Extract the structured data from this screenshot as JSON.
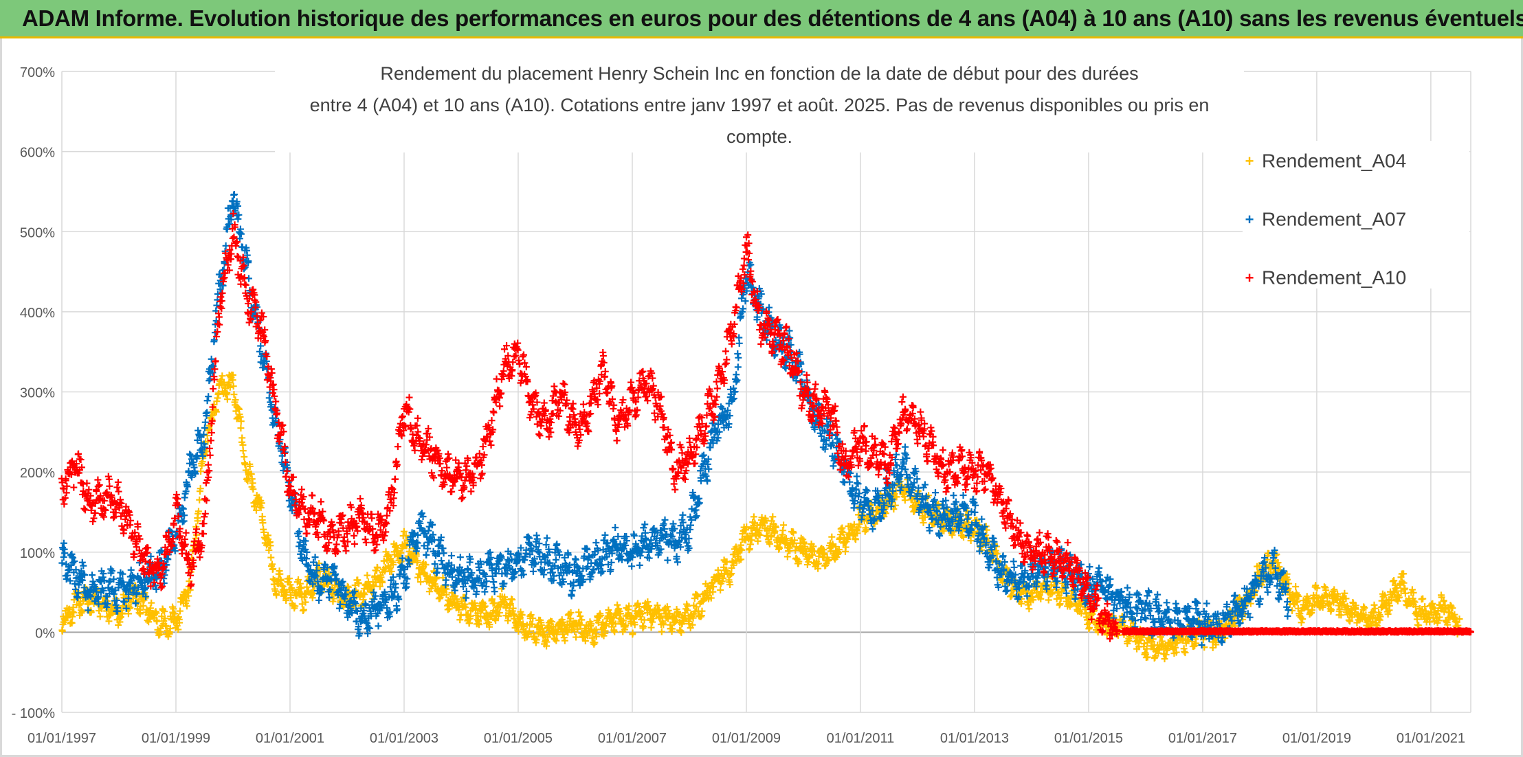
{
  "header": {
    "title": "ADAM Informe. Evolution historique des performances en euros pour des détentions de 4 ans (A04) à 10 ans (A10) sans les revenus éventuels"
  },
  "chart_data": {
    "type": "scatter",
    "title_line1": "Rendement du placement Henry Schein Inc en fonction de la date de début pour des durées",
    "title_line2": "entre 4 (A04) et 10 ans (A10). Cotations entre janv 1997 et août. 2025. Pas de revenus disponibles ou pris en compte.",
    "xlabel": "",
    "ylabel": "",
    "x_range": [
      "01/01/1997",
      "01/09/2021"
    ],
    "ylim": [
      -100,
      700
    ],
    "y_ticks": [
      -100,
      0,
      100,
      200,
      300,
      400,
      500,
      600,
      700
    ],
    "y_tick_labels": [
      "- 100%",
      "0%",
      "100%",
      "200%",
      "300%",
      "400%",
      "500%",
      "600%",
      "700%"
    ],
    "x_tick_labels": [
      "01/01/1997",
      "01/01/1999",
      "01/01/2001",
      "01/01/2003",
      "01/01/2005",
      "01/01/2007",
      "01/01/2009",
      "01/01/2011",
      "01/01/2013",
      "01/01/2015",
      "01/01/2017",
      "01/01/2019",
      "01/01/2021"
    ],
    "grid": true,
    "legend_position": "right",
    "marker": "+",
    "series": [
      {
        "name": "Rendement_A04",
        "color": "#ffc000",
        "x": [
          1997.0,
          1997.25,
          1997.5,
          1997.75,
          1998.0,
          1998.25,
          1998.5,
          1998.75,
          1999.0,
          1999.25,
          1999.5,
          1999.75,
          2000.0,
          2000.25,
          2000.5,
          2000.75,
          2001.0,
          2001.25,
          2001.5,
          2001.75,
          2002.0,
          2002.25,
          2002.5,
          2002.75,
          2003.0,
          2003.25,
          2003.5,
          2003.75,
          2004.0,
          2004.25,
          2004.5,
          2004.75,
          2005.0,
          2005.25,
          2005.5,
          2005.75,
          2006.0,
          2006.25,
          2006.5,
          2006.75,
          2007.0,
          2007.25,
          2007.5,
          2007.75,
          2008.0,
          2008.25,
          2008.5,
          2008.75,
          2009.0,
          2009.25,
          2009.5,
          2009.75,
          2010.0,
          2010.25,
          2010.5,
          2010.75,
          2011.0,
          2011.25,
          2011.5,
          2011.75,
          2012.0,
          2012.25,
          2012.5,
          2012.75,
          2013.0,
          2013.25,
          2013.5,
          2013.75,
          2014.0,
          2014.25,
          2014.5,
          2014.75,
          2015.0,
          2015.25,
          2015.5,
          2015.75,
          2016.0,
          2016.25,
          2016.5,
          2016.75,
          2017.0,
          2017.25,
          2017.5,
          2017.75,
          2018.0,
          2018.25,
          2018.5,
          2018.75,
          2019.0,
          2019.25,
          2019.5,
          2019.75,
          2020.0,
          2020.25,
          2020.5,
          2020.75,
          2021.0,
          2021.25,
          2021.5
        ],
        "y": [
          10,
          35,
          40,
          30,
          25,
          45,
          30,
          10,
          15,
          60,
          230,
          300,
          310,
          200,
          150,
          60,
          50,
          45,
          70,
          55,
          40,
          50,
          60,
          90,
          110,
          80,
          65,
          45,
          30,
          25,
          20,
          40,
          10,
          5,
          0,
          5,
          10,
          0,
          10,
          20,
          15,
          25,
          20,
          15,
          20,
          40,
          70,
          80,
          120,
          130,
          125,
          110,
          100,
          90,
          100,
          120,
          140,
          150,
          165,
          185,
          160,
          150,
          140,
          135,
          130,
          110,
          75,
          50,
          45,
          60,
          50,
          40,
          20,
          10,
          5,
          0,
          -15,
          -20,
          -10,
          -5,
          0,
          -5,
          15,
          35,
          70,
          90,
          50,
          30,
          40,
          45,
          30,
          20,
          15,
          40,
          60,
          25,
          20,
          30,
          10
        ],
        "spread": 15
      },
      {
        "name": "Rendement_A07",
        "color": "#0070c0",
        "x": [
          1997.0,
          1997.25,
          1997.5,
          1997.75,
          1998.0,
          1998.25,
          1998.5,
          1998.75,
          1999.0,
          1999.25,
          1999.5,
          1999.75,
          2000.0,
          2000.25,
          2000.5,
          2000.75,
          2001.0,
          2001.25,
          2001.5,
          2001.75,
          2002.0,
          2002.25,
          2002.5,
          2002.75,
          2003.0,
          2003.25,
          2003.5,
          2003.75,
          2004.0,
          2004.25,
          2004.5,
          2004.75,
          2005.0,
          2005.25,
          2005.5,
          2005.75,
          2006.0,
          2006.25,
          2006.5,
          2006.75,
          2007.0,
          2007.25,
          2007.5,
          2007.75,
          2008.0,
          2008.25,
          2008.5,
          2008.75,
          2009.0,
          2009.25,
          2009.5,
          2009.75,
          2010.0,
          2010.25,
          2010.5,
          2010.75,
          2011.0,
          2011.25,
          2011.5,
          2011.75,
          2012.0,
          2012.25,
          2012.5,
          2012.75,
          2013.0,
          2013.25,
          2013.5,
          2013.75,
          2014.0,
          2014.25,
          2014.5,
          2014.75,
          2015.0,
          2015.25,
          2015.5,
          2015.75,
          2016.0,
          2016.25,
          2016.5,
          2016.75,
          2017.0,
          2017.25,
          2017.5,
          2017.75,
          2018.0,
          2018.25,
          2018.5
        ],
        "y": [
          90,
          70,
          50,
          55,
          50,
          60,
          65,
          80,
          120,
          200,
          250,
          420,
          550,
          450,
          350,
          260,
          180,
          90,
          60,
          70,
          40,
          20,
          30,
          40,
          70,
          130,
          110,
          80,
          70,
          65,
          75,
          80,
          90,
          100,
          90,
          80,
          70,
          85,
          95,
          110,
          100,
          110,
          120,
          110,
          130,
          200,
          260,
          280,
          450,
          400,
          370,
          350,
          310,
          260,
          240,
          200,
          160,
          150,
          180,
          210,
          170,
          150,
          140,
          150,
          140,
          100,
          70,
          65,
          75,
          80,
          80,
          70,
          55,
          60,
          40,
          30,
          25,
          20,
          15,
          20,
          10,
          5,
          20,
          35,
          60,
          80,
          40
        ]
      },
      {
        "name": "Rendement_A10",
        "color": "#ff0000",
        "x": [
          1997.0,
          1997.25,
          1997.5,
          1997.75,
          1998.0,
          1998.25,
          1998.5,
          1998.75,
          1999.0,
          1999.25,
          1999.5,
          1999.75,
          2000.0,
          2000.25,
          2000.5,
          2000.75,
          2001.0,
          2001.25,
          2001.5,
          2001.75,
          2002.0,
          2002.25,
          2002.5,
          2002.75,
          2003.0,
          2003.25,
          2003.5,
          2003.75,
          2004.0,
          2004.25,
          2004.5,
          2004.75,
          2005.0,
          2005.25,
          2005.5,
          2005.75,
          2006.0,
          2006.25,
          2006.5,
          2006.75,
          2007.0,
          2007.25,
          2007.5,
          2007.75,
          2008.0,
          2008.25,
          2008.5,
          2008.75,
          2009.0,
          2009.25,
          2009.5,
          2009.75,
          2010.0,
          2010.25,
          2010.5,
          2010.75,
          2011.0,
          2011.25,
          2011.5,
          2011.75,
          2012.0,
          2012.25,
          2012.5,
          2012.75,
          2013.0,
          2013.25,
          2013.5,
          2013.75,
          2014.0,
          2014.25,
          2014.5,
          2014.75,
          2015.0,
          2015.25,
          2015.5
        ],
        "y": [
          180,
          210,
          160,
          170,
          160,
          120,
          80,
          70,
          150,
          80,
          130,
          400,
          500,
          420,
          380,
          280,
          180,
          150,
          140,
          120,
          130,
          140,
          120,
          150,
          280,
          240,
          220,
          200,
          190,
          200,
          250,
          330,
          350,
          280,
          260,
          300,
          250,
          280,
          330,
          260,
          290,
          310,
          280,
          200,
          220,
          260,
          300,
          380,
          480,
          380,
          370,
          350,
          300,
          280,
          270,
          200,
          240,
          220,
          210,
          270,
          260,
          230,
          200,
          210,
          200,
          200,
          160,
          120,
          100,
          100,
          90,
          80,
          50,
          20,
          0
        ],
        "flat_from": 2015.6,
        "flat_to": 2021.7,
        "flat_value": 1
      }
    ]
  }
}
